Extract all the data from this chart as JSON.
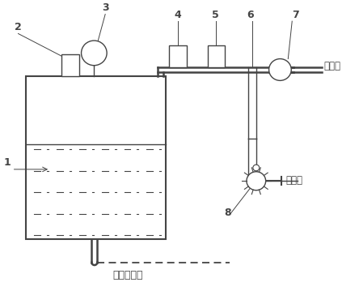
{
  "bottom_label": "通往发动机",
  "label_tda_1": "通大气",
  "label_tda_2": "通大气",
  "line_color": "#444444",
  "bg_color": "#ffffff"
}
